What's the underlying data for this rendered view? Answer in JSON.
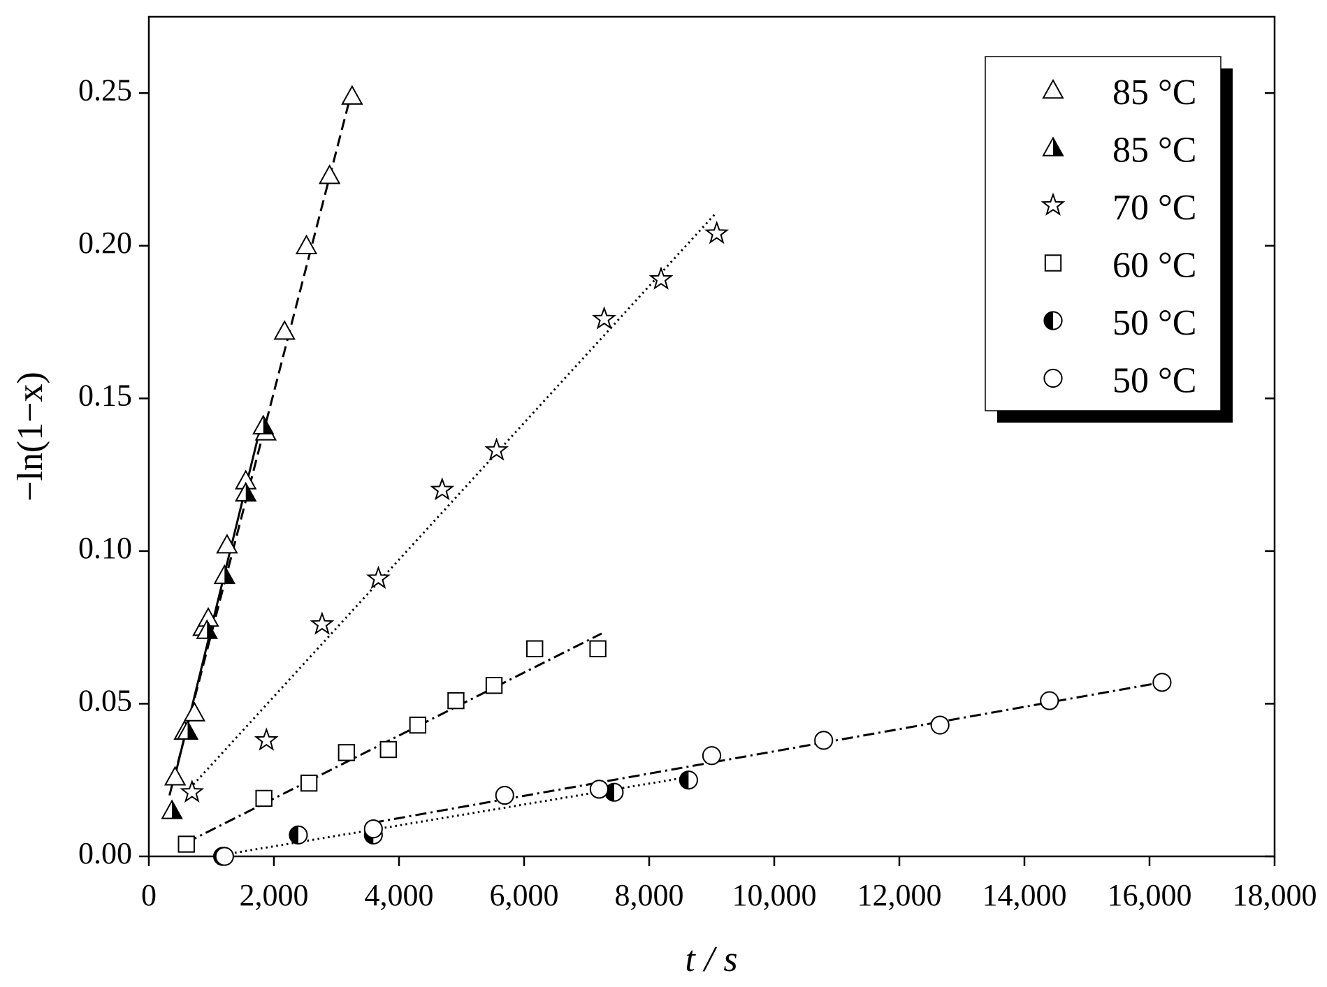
{
  "chart_data": {
    "type": "scatter",
    "xlabel": "t / s",
    "ylabel": "−ln(1−x)",
    "xlim": [
      0,
      18000
    ],
    "ylim": [
      0,
      0.275
    ],
    "xticks": [
      0,
      {
        "value": 2000,
        "label": "2,000"
      },
      {
        "value": 4000,
        "label": "4,000"
      },
      {
        "value": 6000,
        "label": "6,000"
      },
      {
        "value": 8000,
        "label": "8,000"
      },
      {
        "value": 10000,
        "label": "10,000"
      },
      {
        "value": 12000,
        "label": "12,000"
      },
      {
        "value": 14000,
        "label": "14,000"
      },
      {
        "value": 16000,
        "label": "16,000"
      },
      {
        "value": 18000,
        "label": "18,000"
      }
    ],
    "yticks": [
      {
        "value": 0,
        "label": "0.00"
      },
      0.05,
      {
        "value": 0.1,
        "label": "0.10"
      },
      {
        "value": 0.15,
        "label": "0.15"
      },
      {
        "value": 0.2,
        "label": "0.20"
      },
      0.25
    ],
    "legend": "upper right",
    "series": [
      {
        "name": "85 °C",
        "color": "#000000",
        "marker": "triangle",
        "dash": "dashed",
        "x": [
          420,
          570,
          730,
          870,
          950,
          1250,
          1550,
          1870,
          2170,
          2520,
          2890,
          3250
        ],
        "values": [
          0.026,
          0.041,
          0.047,
          0.075,
          0.078,
          0.102,
          0.123,
          0.139,
          0.172,
          0.2,
          0.223,
          0.249
        ],
        "fit_x": [
          330,
          3250
        ],
        "fit_y": [
          0.02,
          0.251
        ]
      },
      {
        "name": "85 °C",
        "color": "#000000",
        "marker": "triangle-half",
        "dash": "solid",
        "x": [
          370,
          620,
          930,
          1210,
          1550,
          1830
        ],
        "values": [
          0.015,
          0.041,
          0.074,
          0.092,
          0.119,
          0.141
        ],
        "fit_x": [
          390,
          1790
        ],
        "fit_y": [
          0.024,
          0.141
        ]
      },
      {
        "name": "70 °C",
        "color": "#000000",
        "marker": "star",
        "dash": "dotted",
        "x": [
          690,
          1880,
          2770,
          3670,
          4690,
          5560,
          7280,
          8190,
          9080
        ],
        "values": [
          0.021,
          0.038,
          0.076,
          0.091,
          0.12,
          0.133,
          0.176,
          0.189,
          0.204
        ],
        "fit_x": [
          600,
          9080
        ],
        "fit_y": [
          0.021,
          0.211
        ]
      },
      {
        "name": "60 °C",
        "color": "#000000",
        "marker": "square",
        "dash": "dashdot",
        "x": [
          600,
          1840,
          2560,
          3160,
          3830,
          4300,
          4910,
          5520,
          6170,
          7180
        ],
        "values": [
          0.004,
          0.019,
          0.024,
          0.034,
          0.035,
          0.043,
          0.051,
          0.056,
          0.068,
          0.068
        ],
        "fit_x": [
          600,
          7240
        ],
        "fit_y": [
          0.0045,
          0.073
        ]
      },
      {
        "name": "50 °C",
        "color": "#000000",
        "marker": "circle-half",
        "dash": "dotted",
        "x": [
          1180,
          2390,
          3590,
          7440,
          8630
        ],
        "values": [
          0.0,
          0.007,
          0.007,
          0.021,
          0.025
        ],
        "fit_x": [
          1210,
          8630
        ],
        "fit_y": [
          0.0006,
          0.026
        ]
      },
      {
        "name": "50 °C",
        "color": "#000000",
        "marker": "circle",
        "dash": "dashdot",
        "x": [
          1210,
          3590,
          5690,
          7200,
          9000,
          10790,
          12650,
          14400,
          16200
        ],
        "values": [
          0.0,
          0.009,
          0.02,
          0.022,
          0.033,
          0.038,
          0.043,
          0.051,
          0.057
        ],
        "fit_x": [
          3580,
          16200
        ],
        "fit_y": [
          0.011,
          0.057
        ]
      }
    ]
  }
}
